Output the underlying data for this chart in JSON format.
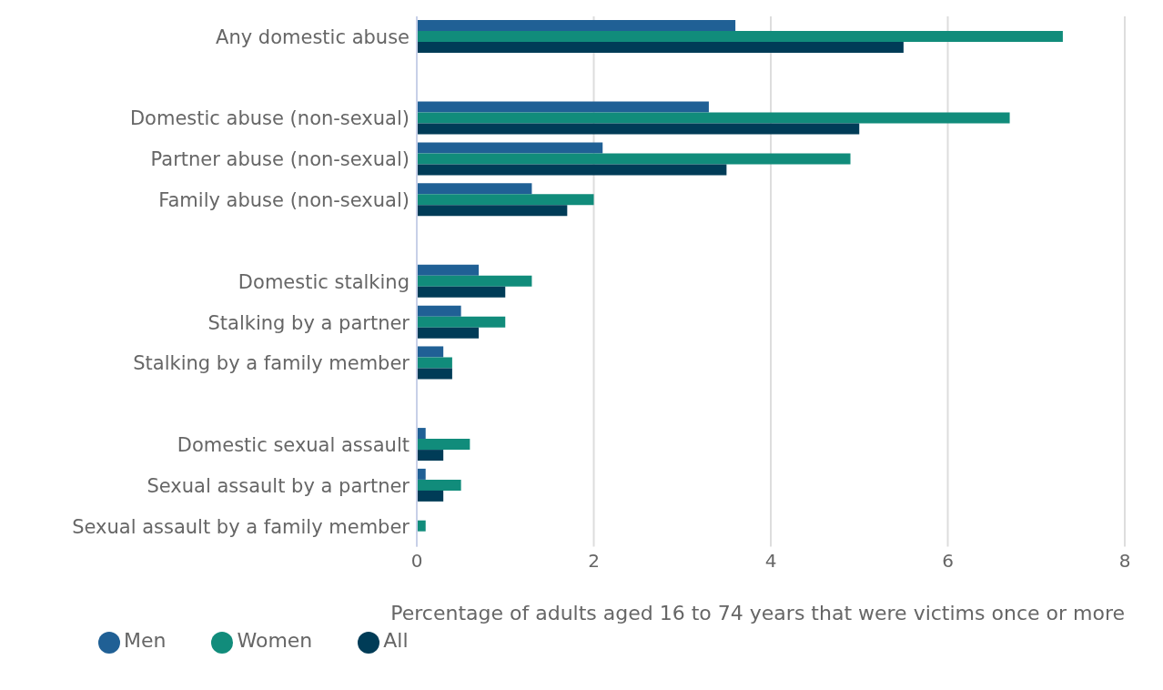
{
  "chart_data": {
    "type": "bar",
    "orientation": "horizontal",
    "xlabel": "Percentage of adults aged 16 to 74 years that were victims once or more",
    "categories": [
      "Any domestic abuse",
      null,
      "Domestic abuse (non-sexual)",
      "Partner abuse (non-sexual)",
      "Family abuse (non-sexual)",
      null,
      "Domestic stalking",
      "Stalking by a partner",
      "Stalking by a family member",
      null,
      "Domestic sexual assault",
      "Sexual assault by a partner",
      "Sexual assault by a family member"
    ],
    "series": [
      {
        "name": "Men",
        "color": "#206095",
        "values": [
          3.6,
          null,
          3.3,
          2.1,
          1.3,
          null,
          0.7,
          0.5,
          0.3,
          null,
          0.1,
          0.1,
          0
        ]
      },
      {
        "name": "Women",
        "color": "#118c7b",
        "values": [
          7.3,
          null,
          6.7,
          4.9,
          2.0,
          null,
          1.3,
          1.0,
          0.4,
          null,
          0.6,
          0.5,
          0.1
        ]
      },
      {
        "name": "All",
        "color": "#003c57",
        "values": [
          5.5,
          null,
          5.0,
          3.5,
          1.7,
          null,
          1.0,
          0.7,
          0.4,
          null,
          0.3,
          0.3,
          0
        ]
      }
    ],
    "xlim": [
      0,
      8
    ],
    "xticks": [
      0,
      2,
      4,
      6,
      8
    ],
    "grid": "x",
    "legend": "bottom left"
  }
}
